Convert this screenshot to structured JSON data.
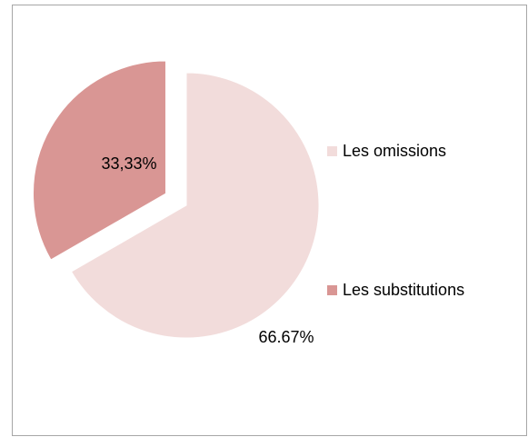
{
  "chart_data": {
    "type": "pie",
    "categories": [
      "Les omissions",
      "Les substitutions"
    ],
    "values": [
      66.67,
      33.33
    ],
    "value_labels": [
      "66.67%",
      "33,33%"
    ],
    "colors": [
      "#f2dcdb",
      "#d99694"
    ],
    "legend": "right"
  }
}
